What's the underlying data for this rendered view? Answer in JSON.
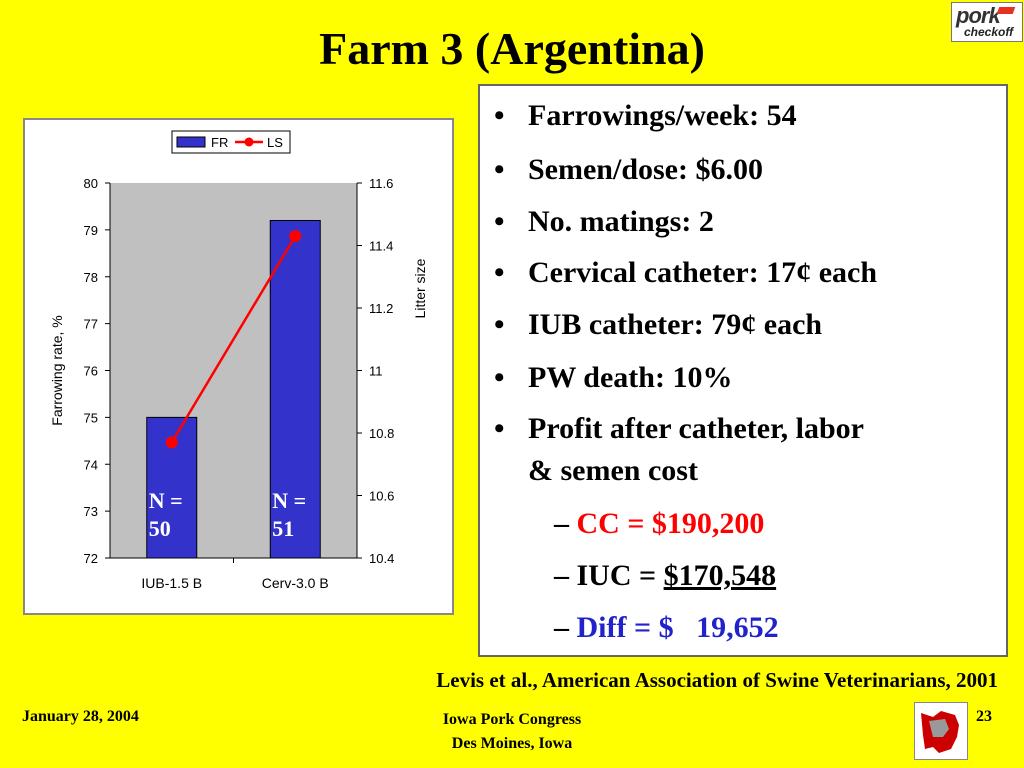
{
  "title": "Farm 3 (Argentina)",
  "logo": {
    "top": "pork",
    "bottom": "checkoff",
    "accent_color": "#E83020"
  },
  "chart_data": {
    "type": "bar",
    "categories": [
      "IUB-1.5 B",
      "Cerv-3.0 B"
    ],
    "series": [
      {
        "name": "FR",
        "kind": "bar",
        "axis": "left",
        "color": "#3333CC",
        "values": [
          75,
          79.2
        ]
      },
      {
        "name": "LS",
        "kind": "line",
        "axis": "right",
        "color": "#FF0000",
        "values": [
          10.77,
          11.43
        ]
      }
    ],
    "bar_labels": [
      [
        "N =",
        "50"
      ],
      [
        "N =",
        "51"
      ]
    ],
    "ylabel": "Farrowing rate, %",
    "y2label": "Litter size",
    "ylim": [
      72,
      80
    ],
    "y2lim": [
      10.4,
      11.6
    ],
    "yticks": [
      72,
      73,
      74,
      75,
      76,
      77,
      78,
      79,
      80
    ],
    "y2ticks": [
      "10.4",
      "10.6",
      "10.8",
      "11",
      "11.2",
      "11.4",
      "11.6"
    ],
    "plot_background": "#C0C0C0",
    "legend_position": "top"
  },
  "bullets": [
    "Farrowings/week: 54",
    "Semen/dose: $6.00",
    "No. matings: 2",
    "Cervical catheter: 17¢ each",
    "IUB catheter: 79¢ each",
    "PW death: 10%",
    "Profit after catheter, labor",
    "& semen cost"
  ],
  "bullet_char": "•",
  "sub_bullets": {
    "dash": "–",
    "cc": {
      "text": "CC =  $190,200",
      "color": "#FF0000"
    },
    "iuc_label": "IUC = ",
    "iuc_value": "$170,548",
    "diff": {
      "text": "Diff = $   19,652",
      "color": "#2222CC"
    }
  },
  "citation": "Levis et al., American Association of Swine Veterinarians,  2001",
  "footer": {
    "date": "January 28, 2004",
    "event_line1": "Iowa Pork Congress",
    "event_line2": "Des Moines, Iowa",
    "page": "23"
  }
}
